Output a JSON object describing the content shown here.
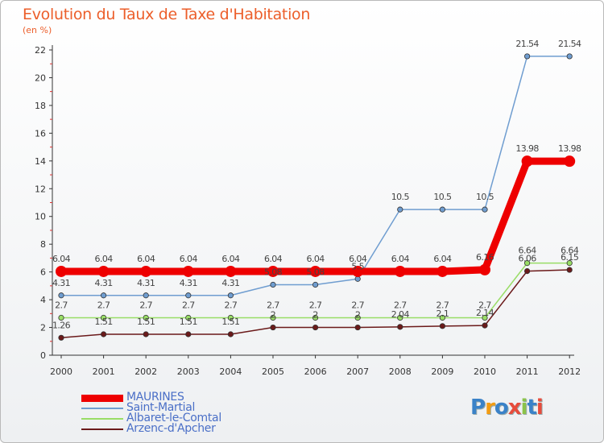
{
  "title": "Evolution du Taux de Taxe d'Habitation",
  "subtitle": "(en %)",
  "logo": {
    "text": "Proxiti",
    "colors": [
      "#3a82c8",
      "#f39c12",
      "#3a82c8",
      "#e74c3c",
      "#8bc34a",
      "#3a82c8",
      "#e74c3c"
    ]
  },
  "chart_data": {
    "type": "line",
    "x": [
      "2000",
      "2001",
      "2002",
      "2003",
      "2004",
      "2005",
      "2006",
      "2007",
      "2008",
      "2009",
      "2010",
      "2011",
      "2012"
    ],
    "ylim": [
      0,
      22
    ],
    "yticks": [
      "0",
      "2",
      "4",
      "6",
      "8",
      "10",
      "12",
      "14",
      "16",
      "18",
      "20",
      "22"
    ],
    "grid": false,
    "legend_position": "bottom-left",
    "series": [
      {
        "name": "MAURINES",
        "color": "#ee0000",
        "values": [
          6.04,
          6.04,
          6.04,
          6.04,
          6.04,
          6.04,
          6.04,
          6.04,
          6.04,
          6.04,
          6.16,
          13.98,
          13.98
        ],
        "labels": [
          "6.04",
          "6.04",
          "6.04",
          "6.04",
          "6.04",
          "6.04",
          "6.04",
          "6.04",
          "6.04",
          "6.04",
          "6.16",
          "13.98",
          "13.98"
        ]
      },
      {
        "name": "Saint-Martial",
        "color": "#6f9dd0",
        "values": [
          4.31,
          4.31,
          4.31,
          4.31,
          4.31,
          5.08,
          5.08,
          5.5,
          10.5,
          10.5,
          10.5,
          21.54,
          21.54
        ],
        "labels": [
          "4.31",
          "4.31",
          "4.31",
          "4.31",
          "4.31",
          "5.08",
          "5.08",
          "5.5",
          "10.5",
          "10.5",
          "10.5",
          "21.54",
          "21.54"
        ]
      },
      {
        "name": "Albaret-le-Comtal",
        "color": "#99dd66",
        "values": [
          2.7,
          2.7,
          2.7,
          2.7,
          2.7,
          2.7,
          2.7,
          2.7,
          2.7,
          2.7,
          2.7,
          6.64,
          6.64
        ],
        "labels": [
          "2.7",
          "2.7",
          "2.7",
          "2.7",
          "2.7",
          "2.7",
          "2.7",
          "2.7",
          "2.7",
          "2.7",
          "2.7",
          "6.64",
          "6.64"
        ]
      },
      {
        "name": "Arzenc-d'Apcher",
        "color": "#6b1a1a",
        "values": [
          1.26,
          1.51,
          1.51,
          1.51,
          1.51,
          2,
          2,
          2,
          2.04,
          2.1,
          2.14,
          6.06,
          6.15
        ],
        "labels": [
          "1.26",
          "1.51",
          "1.51",
          "1.51",
          "1.51",
          "2",
          "2",
          "2",
          "2.04",
          "2.1",
          "2.14",
          "6.06",
          "6.15"
        ]
      }
    ]
  }
}
